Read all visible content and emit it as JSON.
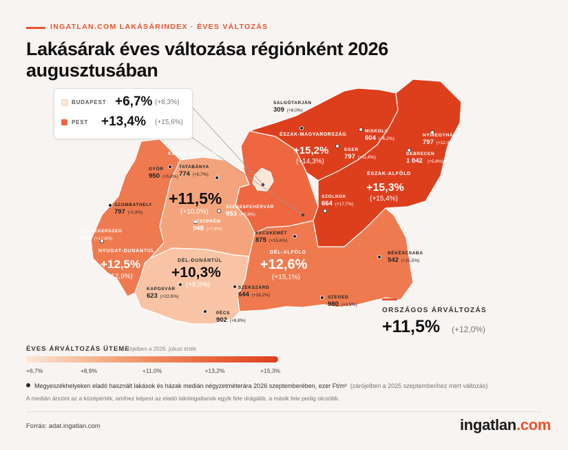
{
  "header": {
    "kicker": "INGATLAN.COM LAKÁSÁRINDEX · ÉVES VÁLTOZÁS",
    "title": "Lakásárak éves változása régiónként 2026 augusztusában"
  },
  "colors": {
    "accent": "#e8532b",
    "scale_min": "#fbe6d8",
    "scale_max": "#dd3f1d"
  },
  "legend_box": {
    "budapest": {
      "label": "BUDAPEST",
      "value": "+6,7%",
      "prev": "(+8,3%)",
      "color": "#fbe6d8"
    },
    "pest": {
      "label": "PEST",
      "value": "+13,4%",
      "prev": "(+15,6%)",
      "color": "#ee6740"
    }
  },
  "regions": [
    {
      "name": "NYUGAT-DUNÁNTÚL",
      "value": "+12,5%",
      "prev": "(+12,9%)",
      "color": "#ef7a4f"
    },
    {
      "name": "KÖZÉP-DUNÁNTÚL",
      "value": "+11,5%",
      "prev": "(+10,0%)",
      "color": "#f4a47c"
    },
    {
      "name": "DÉL-DUNÁNTÚL",
      "value": "+10,3%",
      "prev": "(+8,0%)",
      "color": "#f8c4a5"
    },
    {
      "name": "DÉL-ALFÖLD",
      "value": "+12,6%",
      "prev": "(+15,1%)",
      "color": "#ef7a4f"
    },
    {
      "name": "ÉSZAK-MAGYARORSZÁG",
      "value": "+15,2%",
      "prev": "(+14,3%)",
      "color": "#dd3f1d"
    },
    {
      "name": "ÉSZAK-ALFÖLD",
      "value": "+15,3%",
      "prev": "(+15,4%)",
      "color": "#dd3f1d"
    }
  ],
  "cities": [
    {
      "name": "SALGÓTARJÁN",
      "price": "309",
      "prev": "(+8,0%)"
    },
    {
      "name": "MISKOLC",
      "price": "604",
      "prev": "(+6,2%)"
    },
    {
      "name": "NYÍREGYHÁZA",
      "price": "797",
      "prev": "(+12,4%)"
    },
    {
      "name": "EGER",
      "price": "797",
      "prev": "(+11,6%)"
    },
    {
      "name": "DEBRECEN",
      "price": "1 042",
      "prev": "(+5,6%)"
    },
    {
      "name": "SZOLNOK",
      "price": "664",
      "prev": "(+17,7%)"
    },
    {
      "name": "GYŐR",
      "price": "950",
      "prev": "(+5,8%)"
    },
    {
      "name": "TATABÁNYA",
      "price": "774",
      "prev": "(+5,7%)"
    },
    {
      "name": "SZOMBATHELY",
      "price": "797",
      "prev": "(-0,3%)"
    },
    {
      "name": "SZÉKESFEHÉRVÁR",
      "price": "953",
      "prev": "(+8,9%)"
    },
    {
      "name": "VESZPRÉM",
      "price": "948",
      "prev": "(+7,6%)"
    },
    {
      "name": "ZALAEGERSZEG",
      "price": "686",
      "prev": "(+12,8%)"
    },
    {
      "name": "KECSKEMÉT",
      "price": "875",
      "prev": "(+15,6%)"
    },
    {
      "name": "BÉKÉSCSABA",
      "price": "542",
      "prev": "(+25,5%)"
    },
    {
      "name": "KAPOSVÁR",
      "price": "623",
      "prev": "(+22,6%)"
    },
    {
      "name": "SZEKSZÁRD",
      "price": "644",
      "prev": "(+18,2%)"
    },
    {
      "name": "PÉCS",
      "price": "902",
      "prev": "(+8,8%)"
    },
    {
      "name": "SZEGED",
      "price": "980",
      "prev": "(+3,9%)"
    }
  ],
  "national": {
    "label": "ORSZÁGOS ÁRVÁLTOZÁS",
    "value": "+11,5%",
    "prev": "(+12,0%)"
  },
  "scale": {
    "title": "ÉVES ÁRVÁLTOZÁS ÜTEME",
    "subtitle": "· zárójelben a 2026. júliusi érték",
    "ticks": [
      "+6,7%",
      "+8,9%",
      "+11,0%",
      "+13,2%",
      "+15,3%"
    ]
  },
  "notes": {
    "line1": "Megyeszékhelyeken eladó használt lakások és házak medián négyzetméterára 2026 szeptemberében, ezer Ft/m²",
    "line1_paren": "(zárójelben a 2025 szeptemberihez mért változás)",
    "line2": "A medián árszint az a középérték, amihez képest az eladó lakóingatlanok egyik fele drágább, a másik fele pedig olcsóbb."
  },
  "footer": {
    "source": "Forrás: adat.ingatlan.com",
    "brand_main": "ingatlan",
    "brand_tld": ".com"
  }
}
